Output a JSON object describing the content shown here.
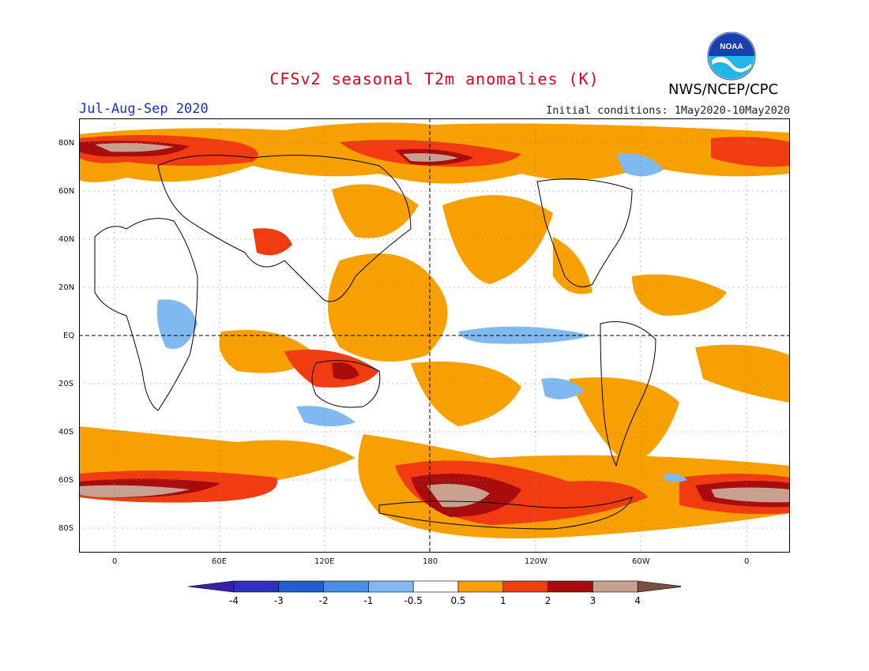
{
  "title": "CFSv2 seasonal T2m anomalies (K)",
  "period": "Jul-Aug-Sep 2020",
  "initial_conditions": "Initial conditions: 1May2020-10May2020",
  "organization": "NWS/NCEP/CPC",
  "logo_text": "NOAA",
  "colors": {
    "title": "#e8001c",
    "period": "#1530d8"
  },
  "map": {
    "lat_labels": [
      "80N",
      "60N",
      "40N",
      "20N",
      "EQ",
      "20S",
      "40S",
      "60S",
      "80S"
    ],
    "lon_labels": [
      "0",
      "60E",
      "120E",
      "180",
      "120W",
      "60W",
      "0"
    ]
  },
  "legend": {
    "labels": [
      "-4",
      "-3",
      "-2",
      "-1",
      "-0.5",
      "0.5",
      "1",
      "2",
      "3",
      "4"
    ],
    "colors": [
      "#3c1fa8",
      "#3030c0",
      "#2060c8",
      "#4a8ee0",
      "#80b8f0",
      "#ffffff",
      "#f8a000",
      "#f03c10",
      "#a80c0c",
      "#c8a090",
      "#7a5040"
    ]
  }
}
